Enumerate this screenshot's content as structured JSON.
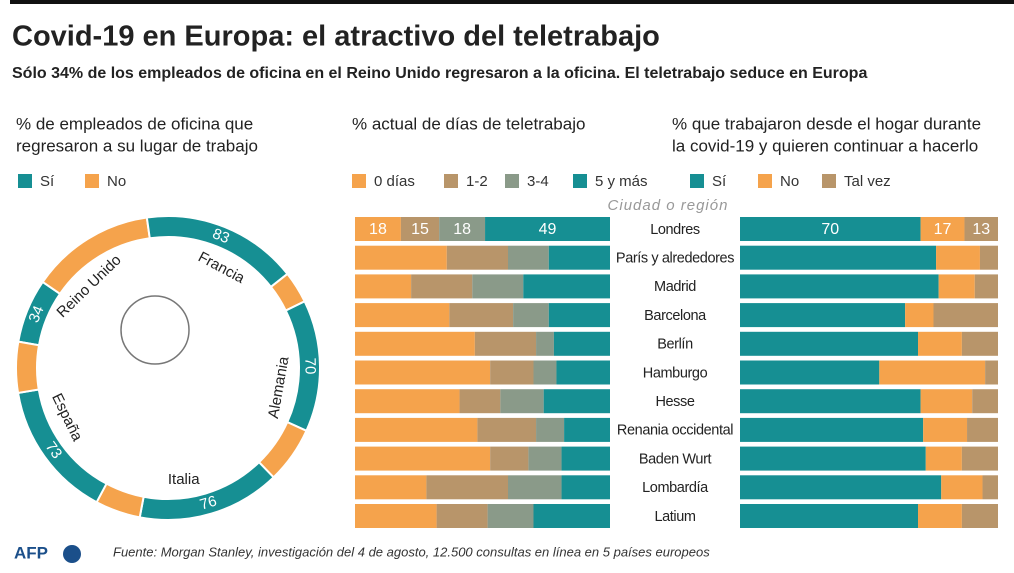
{
  "title": "Covid-19 en Europa: el atractivo del teletrabajo",
  "subtitle": "Sólo 34% de los empleados de oficina en el Reino Unido regresaron a la oficina. El teletrabajo seduce en Europa",
  "source": "Fuente: Morgan Stanley, investigación del 4 de agosto, 12.500 consultas en línea en 5 países europeos",
  "logo": "AFP",
  "chart_data": [
    {
      "type": "donut",
      "title": [
        "% de empleados de oficina que",
        "regresaron a su lugar de trabajo"
      ],
      "categories": [
        "Reino Unido",
        "Francia",
        "Alemania",
        "Italia",
        "España"
      ],
      "series": [
        {
          "name": "Sí",
          "color": "#168f93",
          "values": [
            34,
            83,
            70,
            76,
            73
          ]
        },
        {
          "name": "No",
          "color": "#f5a34c",
          "values": [
            66,
            17,
            30,
            24,
            27
          ]
        }
      ]
    },
    {
      "type": "stacked-bar-h",
      "title": [
        "% actual de días de teletrabajo"
      ],
      "category_label": "Ciudad o región",
      "categories": [
        "Londres",
        "París y alrededores",
        "Madrid",
        "Barcelona",
        "Berlín",
        "Hamburgo",
        "Hesse",
        "Renania occidental",
        "Baden Wurt",
        "Lombardía",
        "Latium"
      ],
      "label_first_row": true,
      "series": [
        {
          "name": "0 días",
          "color": "#f5a34c",
          "values": [
            18,
            36,
            22,
            37,
            47,
            53,
            41,
            48,
            53,
            28,
            32
          ]
        },
        {
          "name": "1-2",
          "color": "#b8956a",
          "values": [
            15,
            24,
            24,
            25,
            24,
            17,
            16,
            23,
            15,
            32,
            20
          ]
        },
        {
          "name": "3-4",
          "color": "#8a9a89",
          "values": [
            18,
            16,
            20,
            14,
            7,
            9,
            17,
            11,
            13,
            21,
            18
          ]
        },
        {
          "name": "5 y más",
          "color": "#168f93",
          "values": [
            49,
            24,
            34,
            24,
            22,
            21,
            26,
            18,
            19,
            19,
            30
          ]
        }
      ]
    },
    {
      "type": "stacked-bar-h",
      "title": [
        "% que trabajaron desde el hogar durante",
        "la covid-19 y quieren continuar a hacerlo"
      ],
      "label_first_row": true,
      "series": [
        {
          "name": "Sí",
          "color": "#168f93",
          "values": [
            70,
            76,
            77,
            64,
            69,
            54,
            70,
            71,
            72,
            78,
            69
          ]
        },
        {
          "name": "No",
          "color": "#f5a34c",
          "values": [
            17,
            17,
            14,
            11,
            17,
            41,
            20,
            17,
            14,
            16,
            17
          ]
        },
        {
          "name": "Tal vez",
          "color": "#b8956a",
          "values": [
            13,
            7,
            9,
            25,
            14,
            5,
            10,
            12,
            14,
            6,
            14
          ]
        }
      ]
    }
  ]
}
